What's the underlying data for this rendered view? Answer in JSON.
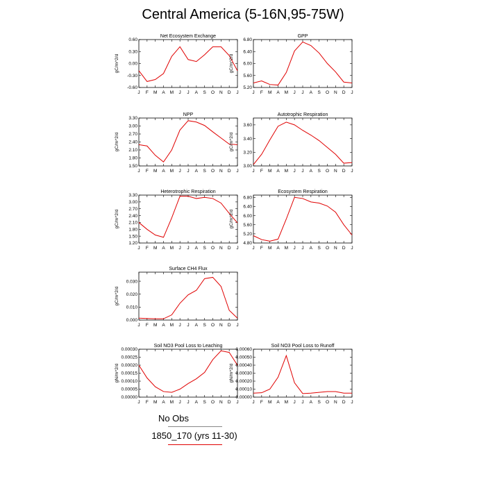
{
  "title": "Central America (5-16N,95-75W)",
  "legend": {
    "obs_label": "No Obs",
    "model_label": "1850_170 (yrs 11-30)",
    "model_color": "#e00000"
  },
  "months": [
    "J",
    "F",
    "M",
    "A",
    "M",
    "J",
    "J",
    "A",
    "S",
    "O",
    "N",
    "D",
    "J"
  ],
  "chart_data": [
    {
      "type": "line",
      "title": "Net Ecosystem Exchange",
      "ylabel": "gC/m^2/d",
      "ylim": [
        -0.6,
        0.6
      ],
      "yticks": [
        -0.6,
        -0.3,
        0.0,
        0.3,
        0.6
      ],
      "ytick_labels": [
        "-0.60",
        "-0.30",
        "0.00",
        "0.30",
        "0.60"
      ],
      "series": [
        {
          "values": [
            -0.18,
            -0.45,
            -0.4,
            -0.25,
            0.18,
            0.42,
            0.1,
            0.05,
            0.22,
            0.42,
            0.42,
            0.2,
            -0.18
          ]
        }
      ]
    },
    {
      "type": "line",
      "title": "GPP",
      "ylabel": "gC/m^2/d",
      "ylim": [
        5.2,
        6.8
      ],
      "yticks": [
        5.2,
        5.6,
        6.0,
        6.4,
        6.8
      ],
      "ytick_labels": [
        "5.20",
        "5.60",
        "6.00",
        "6.40",
        "6.80"
      ],
      "series": [
        {
          "values": [
            5.35,
            5.42,
            5.3,
            5.28,
            5.7,
            6.42,
            6.72,
            6.6,
            6.35,
            6.0,
            5.72,
            5.38,
            5.35
          ]
        }
      ]
    },
    {
      "type": "line",
      "title": "NPP",
      "ylabel": "gC/m^2/d",
      "ylim": [
        1.5,
        3.3
      ],
      "yticks": [
        1.5,
        1.8,
        2.1,
        2.4,
        2.7,
        3.0,
        3.3
      ],
      "ytick_labels": [
        "1.50",
        "1.80",
        "2.10",
        "2.40",
        "2.70",
        "3.00",
        "3.30"
      ],
      "series": [
        {
          "values": [
            2.3,
            2.25,
            1.9,
            1.65,
            2.1,
            2.85,
            3.2,
            3.15,
            3.02,
            2.78,
            2.55,
            2.32,
            2.3
          ]
        }
      ]
    },
    {
      "type": "line",
      "title": "Autotrophic Respiration",
      "ylabel": "gC/m^2/d",
      "ylim": [
        3.0,
        3.7
      ],
      "yticks": [
        3.0,
        3.2,
        3.4,
        3.6
      ],
      "ytick_labels": [
        "3.00",
        "3.20",
        "3.40",
        "3.60"
      ],
      "series": [
        {
          "values": [
            3.02,
            3.17,
            3.38,
            3.58,
            3.64,
            3.6,
            3.52,
            3.45,
            3.37,
            3.27,
            3.17,
            3.04,
            3.05
          ]
        }
      ]
    },
    {
      "type": "line",
      "title": "Heterotrophic Respiration",
      "ylabel": "gC/m^2/d",
      "ylim": [
        1.2,
        3.3
      ],
      "yticks": [
        1.2,
        1.5,
        1.8,
        2.1,
        2.4,
        2.7,
        3.0,
        3.3
      ],
      "ytick_labels": [
        "1.20",
        "1.50",
        "1.80",
        "2.10",
        "2.40",
        "2.70",
        "3.00",
        "3.30"
      ],
      "series": [
        {
          "values": [
            2.1,
            1.8,
            1.55,
            1.45,
            2.3,
            3.25,
            3.25,
            3.15,
            3.2,
            3.15,
            2.95,
            2.5,
            2.08
          ]
        }
      ]
    },
    {
      "type": "line",
      "title": "Ecosystem Respiration",
      "ylabel": "gC/m^2/d",
      "ylim": [
        4.8,
        6.9
      ],
      "yticks": [
        4.8,
        5.2,
        5.6,
        6.0,
        6.4,
        6.8
      ],
      "ytick_labels": [
        "4.80",
        "5.20",
        "5.60",
        "6.00",
        "6.40",
        "6.80"
      ],
      "series": [
        {
          "values": [
            5.12,
            4.95,
            4.88,
            4.97,
            5.85,
            6.8,
            6.75,
            6.6,
            6.55,
            6.42,
            6.15,
            5.6,
            5.15
          ]
        }
      ]
    },
    {
      "type": "line",
      "title": "Surface CH4 Flux",
      "ylabel": "gC/m^2/d",
      "ylim": [
        0.0,
        0.037
      ],
      "yticks": [
        0.0,
        0.01,
        0.02,
        0.03
      ],
      "ytick_labels": [
        "0.000",
        "0.010",
        "0.020",
        "0.030"
      ],
      "series": [
        {
          "values": [
            0.0015,
            0.0012,
            0.001,
            0.001,
            0.004,
            0.013,
            0.0195,
            0.023,
            0.032,
            0.033,
            0.026,
            0.0075,
            0.0015
          ]
        }
      ]
    },
    {
      "type": "line",
      "title": "Soil NO3 Pool Loss to Leaching",
      "ylabel": "gN/m^2/d",
      "ylim": [
        0.0,
        0.0003
      ],
      "yticks": [
        0.0,
        5e-05,
        0.0001,
        0.00015,
        0.0002,
        0.00025,
        0.0003
      ],
      "ytick_labels": [
        "0.00000",
        "0.00005",
        "0.00010",
        "0.00015",
        "0.00020",
        "0.00025",
        "0.00030"
      ],
      "series": [
        {
          "values": [
            0.0002,
            0.00012,
            6.5e-05,
            3.5e-05,
            3e-05,
            5e-05,
            8.5e-05,
            0.000115,
            0.000155,
            0.000235,
            0.00029,
            0.00028,
            0.0002
          ]
        }
      ]
    },
    {
      "type": "line",
      "title": "Soil NO3 Pool Loss to Runoff",
      "ylabel": "gN/m^2/d",
      "ylim": [
        0.0,
        0.0006
      ],
      "yticks": [
        0.0,
        0.0001,
        0.0002,
        0.0003,
        0.0004,
        0.0005,
        0.0006
      ],
      "ytick_labels": [
        "0.00000",
        "0.00010",
        "0.00020",
        "0.00030",
        "0.00040",
        "0.00050",
        "0.00060"
      ],
      "series": [
        {
          "values": [
            5e-05,
            5.5e-05,
            0.0001,
            0.00025,
            0.00052,
            0.00018,
            4.5e-05,
            5e-05,
            6e-05,
            7e-05,
            7e-05,
            5e-05,
            5e-05
          ]
        }
      ]
    }
  ]
}
